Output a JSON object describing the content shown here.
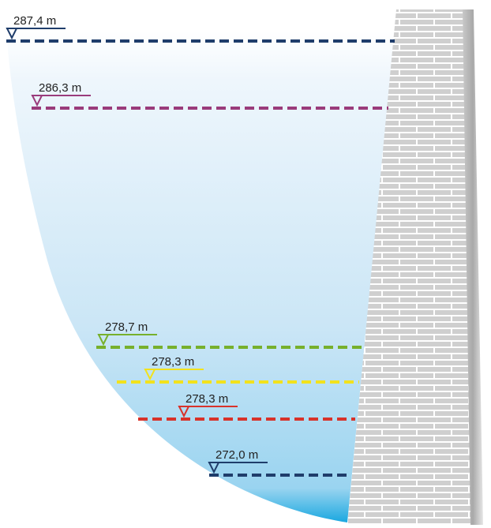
{
  "levels": [
    {
      "label": "287,4 m",
      "color": "#1f3d6b"
    },
    {
      "label": "286,3 m",
      "color": "#9a3b7b"
    },
    {
      "label": "278,7 m",
      "color": "#77b02c"
    },
    {
      "label": "278,3 m",
      "color": "#f2e21c"
    },
    {
      "label": "278,3 m",
      "color": "#d8322a"
    },
    {
      "label": "272,0 m",
      "color": "#1f3d6b"
    }
  ]
}
